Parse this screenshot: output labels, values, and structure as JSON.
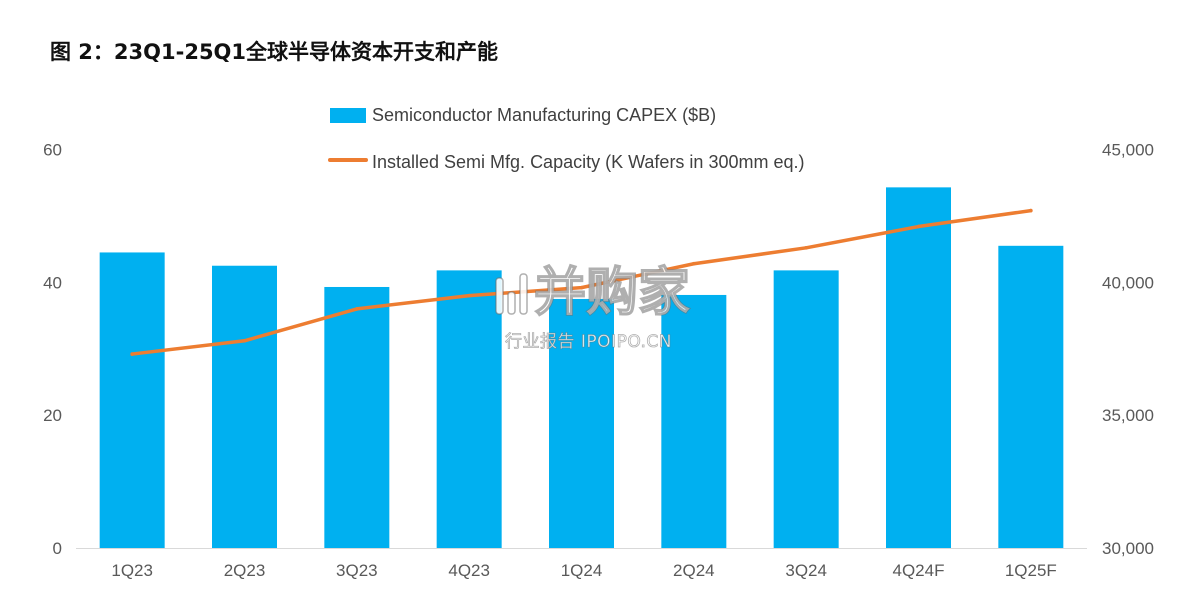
{
  "chart_data": {
    "type": "bar",
    "title": "图 2：23Q1-25Q1全球半导体资本开支和产能",
    "categories": [
      "1Q23",
      "2Q23",
      "3Q23",
      "4Q23",
      "1Q24",
      "2Q24",
      "3Q24",
      "4Q24F",
      "1Q25F"
    ],
    "series": [
      {
        "name": "Semiconductor Manufacturing CAPEX ($B)",
        "type": "bar",
        "axis": "left",
        "color": "#00B0F0",
        "values": [
          44.5,
          42.5,
          39.3,
          41.8,
          37.5,
          38.1,
          41.8,
          54.3,
          45.5
        ]
      },
      {
        "name": "Installed Semi Mfg. Capacity (K Wafers in 300mm eq.)",
        "type": "line",
        "axis": "right",
        "color": "#ED7D31",
        "values": [
          37300,
          37800,
          39000,
          39500,
          39800,
          40700,
          41300,
          42100,
          42700
        ]
      }
    ],
    "y_left": {
      "lim": [
        0,
        60
      ],
      "ticks": [
        0,
        20,
        40,
        60
      ],
      "tick_labels": [
        "0",
        "20",
        "40",
        "60"
      ]
    },
    "y_right": {
      "lim": [
        30000,
        45000
      ],
      "ticks": [
        30000,
        35000,
        40000,
        45000
      ],
      "tick_labels": [
        "30,000",
        "35,000",
        "40,000",
        "45,000"
      ]
    },
    "xlabel": "",
    "ylabel": "",
    "grid": false,
    "legend_placement": "top-center"
  },
  "watermark": {
    "logo_text": "并购家",
    "sub_text": "行业报告 IPOIPO.CN"
  }
}
